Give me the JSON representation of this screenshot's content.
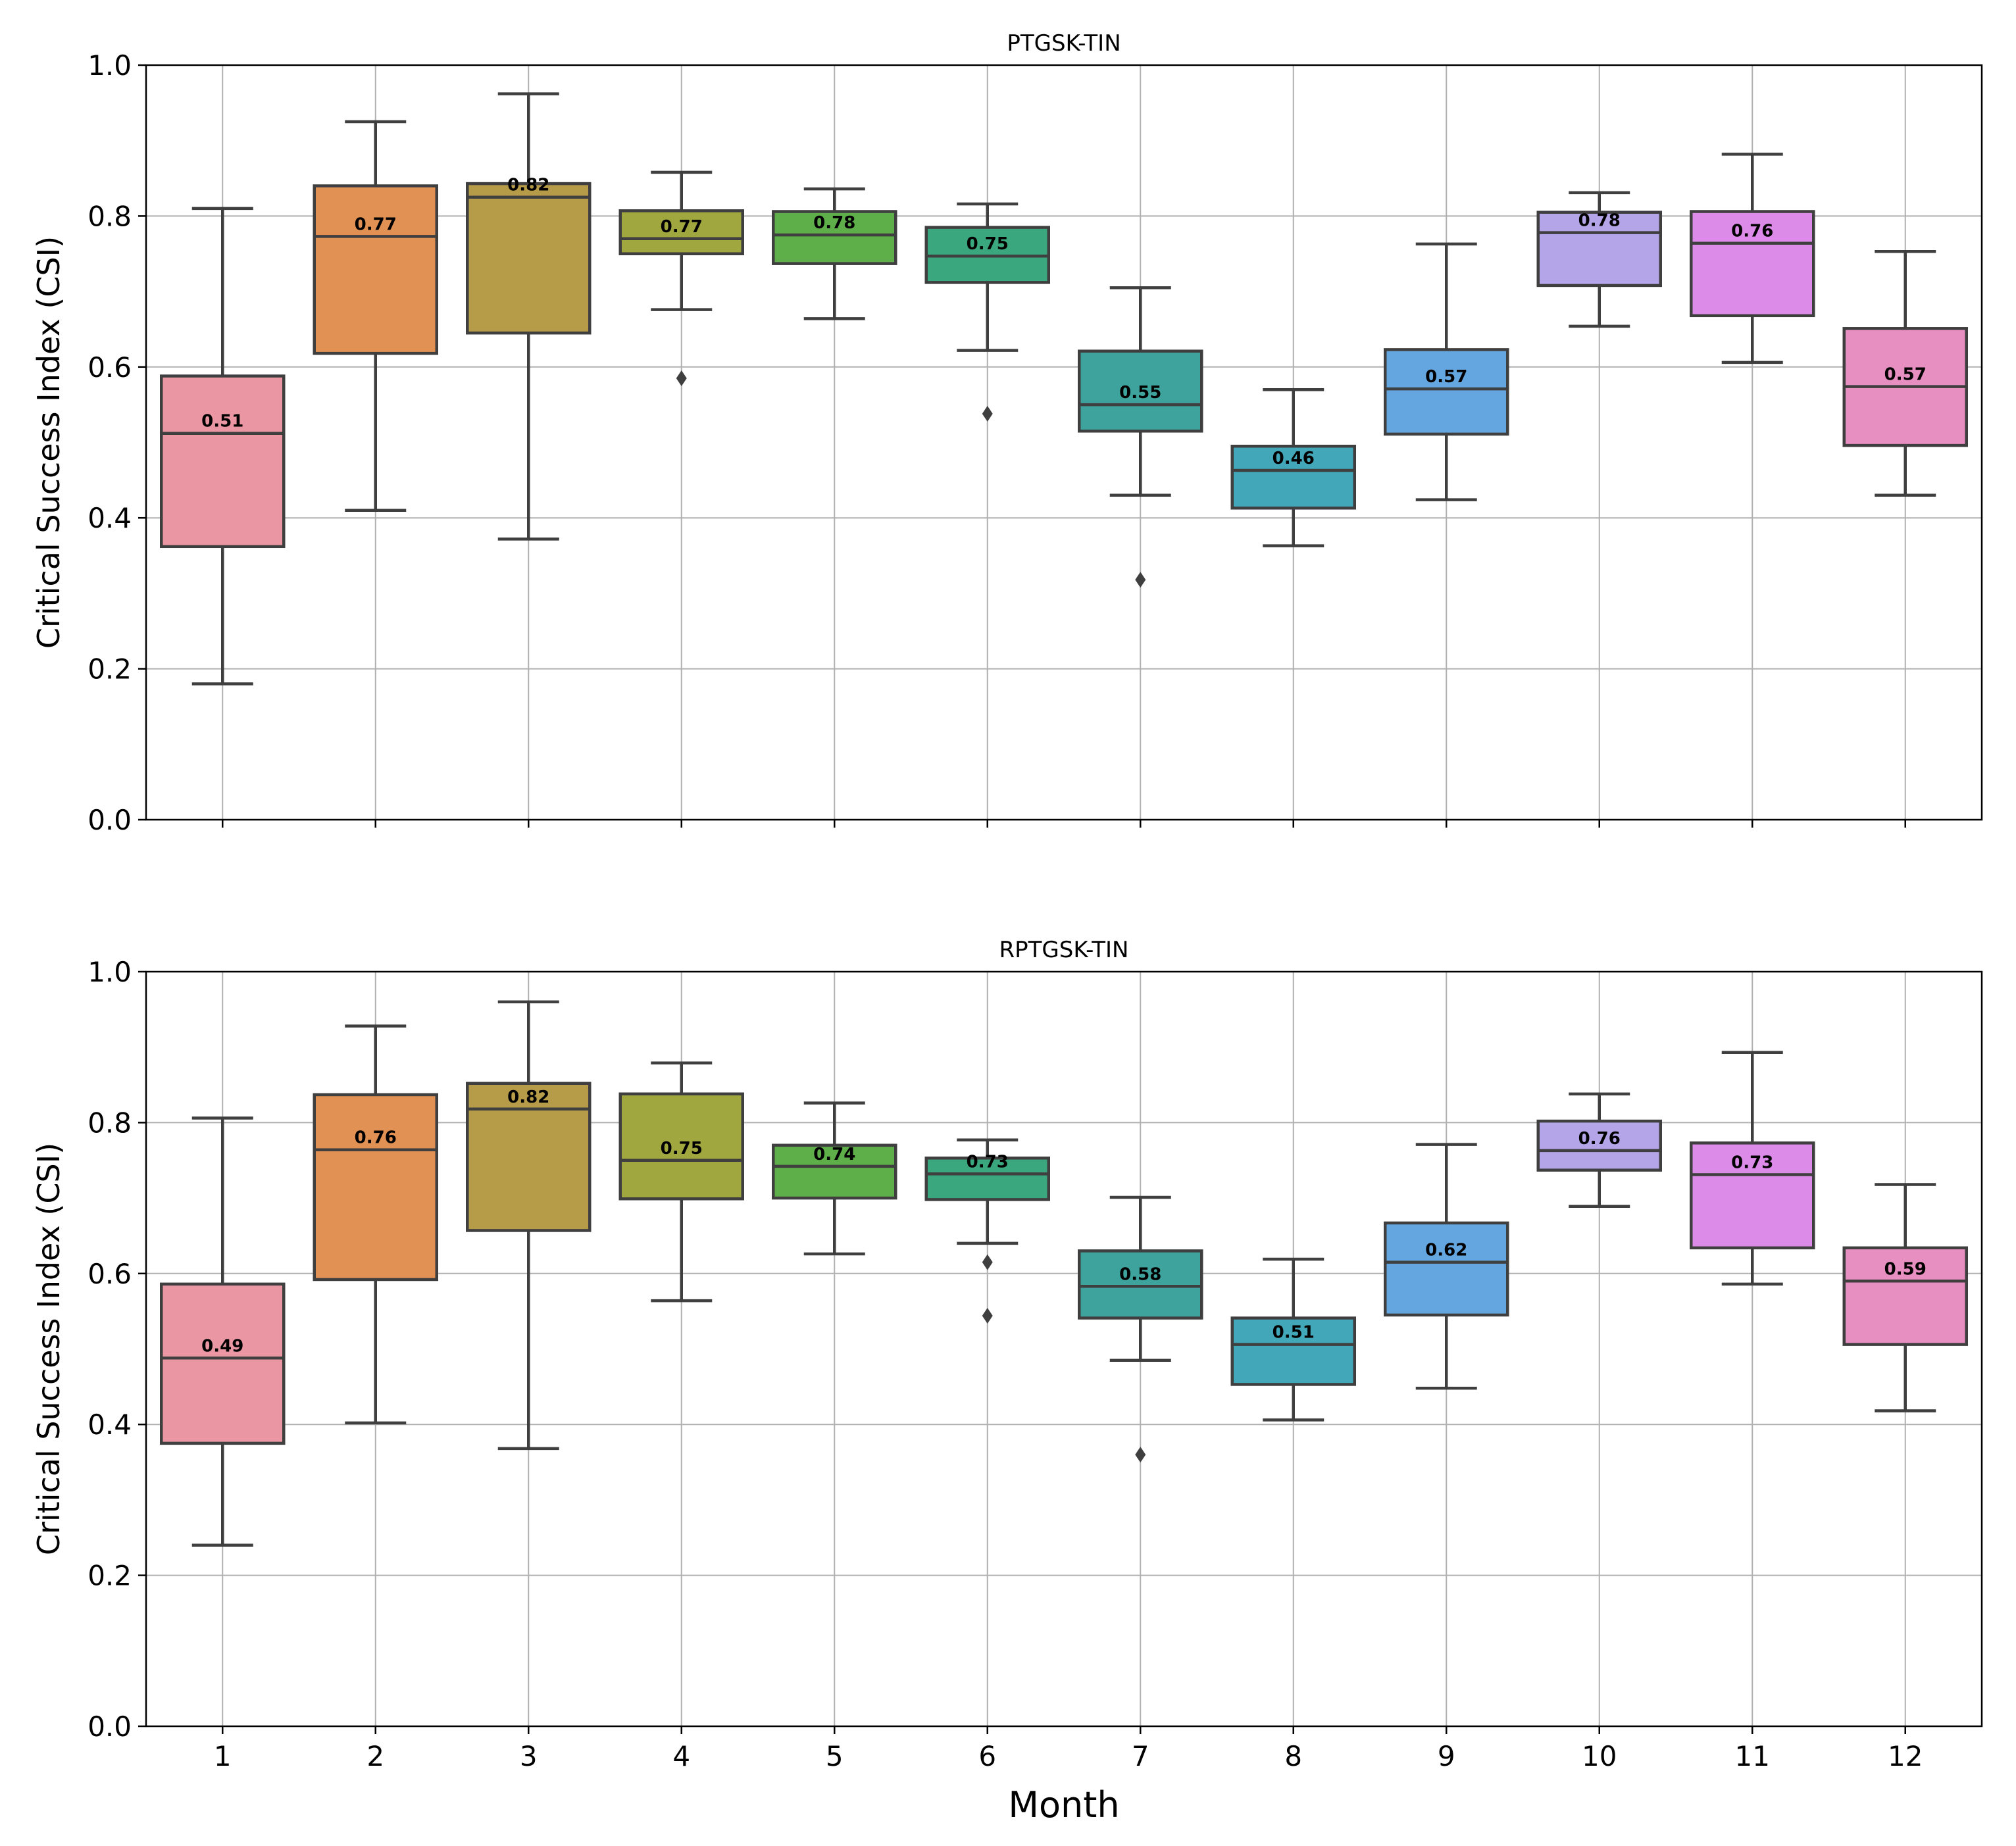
{
  "figure": {
    "xlabel": "Month",
    "ylabel": "Critical Success Index (CSI)"
  },
  "chart_data": [
    {
      "type": "box",
      "title": "PTGSK-TIN",
      "xlabel": "",
      "ylabel": "Critical Success Index (CSI)",
      "ylim": [
        0,
        1
      ],
      "yticks": [
        "0.0",
        "0.2",
        "0.4",
        "0.6",
        "0.8",
        "1.0"
      ],
      "categories": [
        "1",
        "2",
        "3",
        "4",
        "5",
        "6",
        "7",
        "8",
        "9",
        "10",
        "11",
        "12"
      ],
      "colors": [
        "#ea96a3",
        "#e19153",
        "#b69b48",
        "#a0a73f",
        "#5eae4a",
        "#3ba77f",
        "#3ea39c",
        "#41a7b9",
        "#64a7e0",
        "#b4a4e8",
        "#dd8be9",
        "#e88fc1"
      ],
      "boxes": [
        {
          "whislo": 0.18,
          "q1": 0.362,
          "med": 0.512,
          "q3": 0.588,
          "whishi": 0.81,
          "fliers": [],
          "label": "0.51"
        },
        {
          "whislo": 0.41,
          "q1": 0.618,
          "med": 0.773,
          "q3": 0.84,
          "whishi": 0.925,
          "fliers": [],
          "label": "0.77"
        },
        {
          "whislo": 0.372,
          "q1": 0.645,
          "med": 0.825,
          "q3": 0.843,
          "whishi": 0.962,
          "fliers": [],
          "label": "0.82"
        },
        {
          "whislo": 0.676,
          "q1": 0.75,
          "med": 0.77,
          "q3": 0.807,
          "whishi": 0.858,
          "fliers": [
            0.585
          ],
          "label": "0.77"
        },
        {
          "whislo": 0.664,
          "q1": 0.737,
          "med": 0.775,
          "q3": 0.806,
          "whishi": 0.836,
          "fliers": [],
          "label": "0.78"
        },
        {
          "whislo": 0.622,
          "q1": 0.712,
          "med": 0.747,
          "q3": 0.785,
          "whishi": 0.816,
          "fliers": [
            0.538
          ],
          "label": "0.75"
        },
        {
          "whislo": 0.43,
          "q1": 0.515,
          "med": 0.55,
          "q3": 0.621,
          "whishi": 0.705,
          "fliers": [
            0.318
          ],
          "label": "0.55"
        },
        {
          "whislo": 0.363,
          "q1": 0.413,
          "med": 0.463,
          "q3": 0.495,
          "whishi": 0.57,
          "fliers": [],
          "label": "0.46"
        },
        {
          "whislo": 0.424,
          "q1": 0.511,
          "med": 0.571,
          "q3": 0.623,
          "whishi": 0.763,
          "fliers": [],
          "label": "0.57"
        },
        {
          "whislo": 0.654,
          "q1": 0.708,
          "med": 0.778,
          "q3": 0.805,
          "whishi": 0.831,
          "fliers": [],
          "label": "0.78"
        },
        {
          "whislo": 0.606,
          "q1": 0.668,
          "med": 0.764,
          "q3": 0.806,
          "whishi": 0.882,
          "fliers": [],
          "label": "0.76"
        },
        {
          "whislo": 0.43,
          "q1": 0.496,
          "med": 0.574,
          "q3": 0.651,
          "whishi": 0.753,
          "fliers": [],
          "label": "0.57"
        }
      ]
    },
    {
      "type": "box",
      "title": "RPTGSK-TIN",
      "xlabel": "Month",
      "ylabel": "Critical Success Index (CSI)",
      "ylim": [
        0,
        1
      ],
      "yticks": [
        "0.0",
        "0.2",
        "0.4",
        "0.6",
        "0.8",
        "1.0"
      ],
      "categories": [
        "1",
        "2",
        "3",
        "4",
        "5",
        "6",
        "7",
        "8",
        "9",
        "10",
        "11",
        "12"
      ],
      "colors": [
        "#ea96a3",
        "#e19153",
        "#b69b48",
        "#a0a73f",
        "#5eae4a",
        "#3ba77f",
        "#3ea39c",
        "#41a7b9",
        "#64a7e0",
        "#b4a4e8",
        "#dd8be9",
        "#e88fc1"
      ],
      "boxes": [
        {
          "whislo": 0.24,
          "q1": 0.375,
          "med": 0.488,
          "q3": 0.586,
          "whishi": 0.806,
          "fliers": [],
          "label": "0.49"
        },
        {
          "whislo": 0.402,
          "q1": 0.592,
          "med": 0.764,
          "q3": 0.837,
          "whishi": 0.928,
          "fliers": [],
          "label": "0.76"
        },
        {
          "whislo": 0.368,
          "q1": 0.657,
          "med": 0.818,
          "q3": 0.852,
          "whishi": 0.96,
          "fliers": [],
          "label": "0.82"
        },
        {
          "whislo": 0.564,
          "q1": 0.699,
          "med": 0.75,
          "q3": 0.838,
          "whishi": 0.879,
          "fliers": [],
          "label": "0.75"
        },
        {
          "whislo": 0.626,
          "q1": 0.7,
          "med": 0.742,
          "q3": 0.77,
          "whishi": 0.826,
          "fliers": [],
          "label": "0.74"
        },
        {
          "whislo": 0.64,
          "q1": 0.698,
          "med": 0.732,
          "q3": 0.753,
          "whishi": 0.777,
          "fliers": [
            0.615,
            0.544
          ],
          "label": "0.73"
        },
        {
          "whislo": 0.485,
          "q1": 0.541,
          "med": 0.583,
          "q3": 0.63,
          "whishi": 0.701,
          "fliers": [
            0.36
          ],
          "label": "0.58"
        },
        {
          "whislo": 0.406,
          "q1": 0.453,
          "med": 0.506,
          "q3": 0.541,
          "whishi": 0.619,
          "fliers": [],
          "label": "0.51"
        },
        {
          "whislo": 0.448,
          "q1": 0.545,
          "med": 0.615,
          "q3": 0.667,
          "whishi": 0.771,
          "fliers": [],
          "label": "0.62"
        },
        {
          "whislo": 0.689,
          "q1": 0.737,
          "med": 0.763,
          "q3": 0.802,
          "whishi": 0.838,
          "fliers": [],
          "label": "0.76"
        },
        {
          "whislo": 0.586,
          "q1": 0.634,
          "med": 0.731,
          "q3": 0.773,
          "whishi": 0.893,
          "fliers": [],
          "label": "0.73"
        },
        {
          "whislo": 0.418,
          "q1": 0.506,
          "med": 0.59,
          "q3": 0.634,
          "whishi": 0.718,
          "fliers": [],
          "label": "0.59"
        }
      ]
    }
  ]
}
